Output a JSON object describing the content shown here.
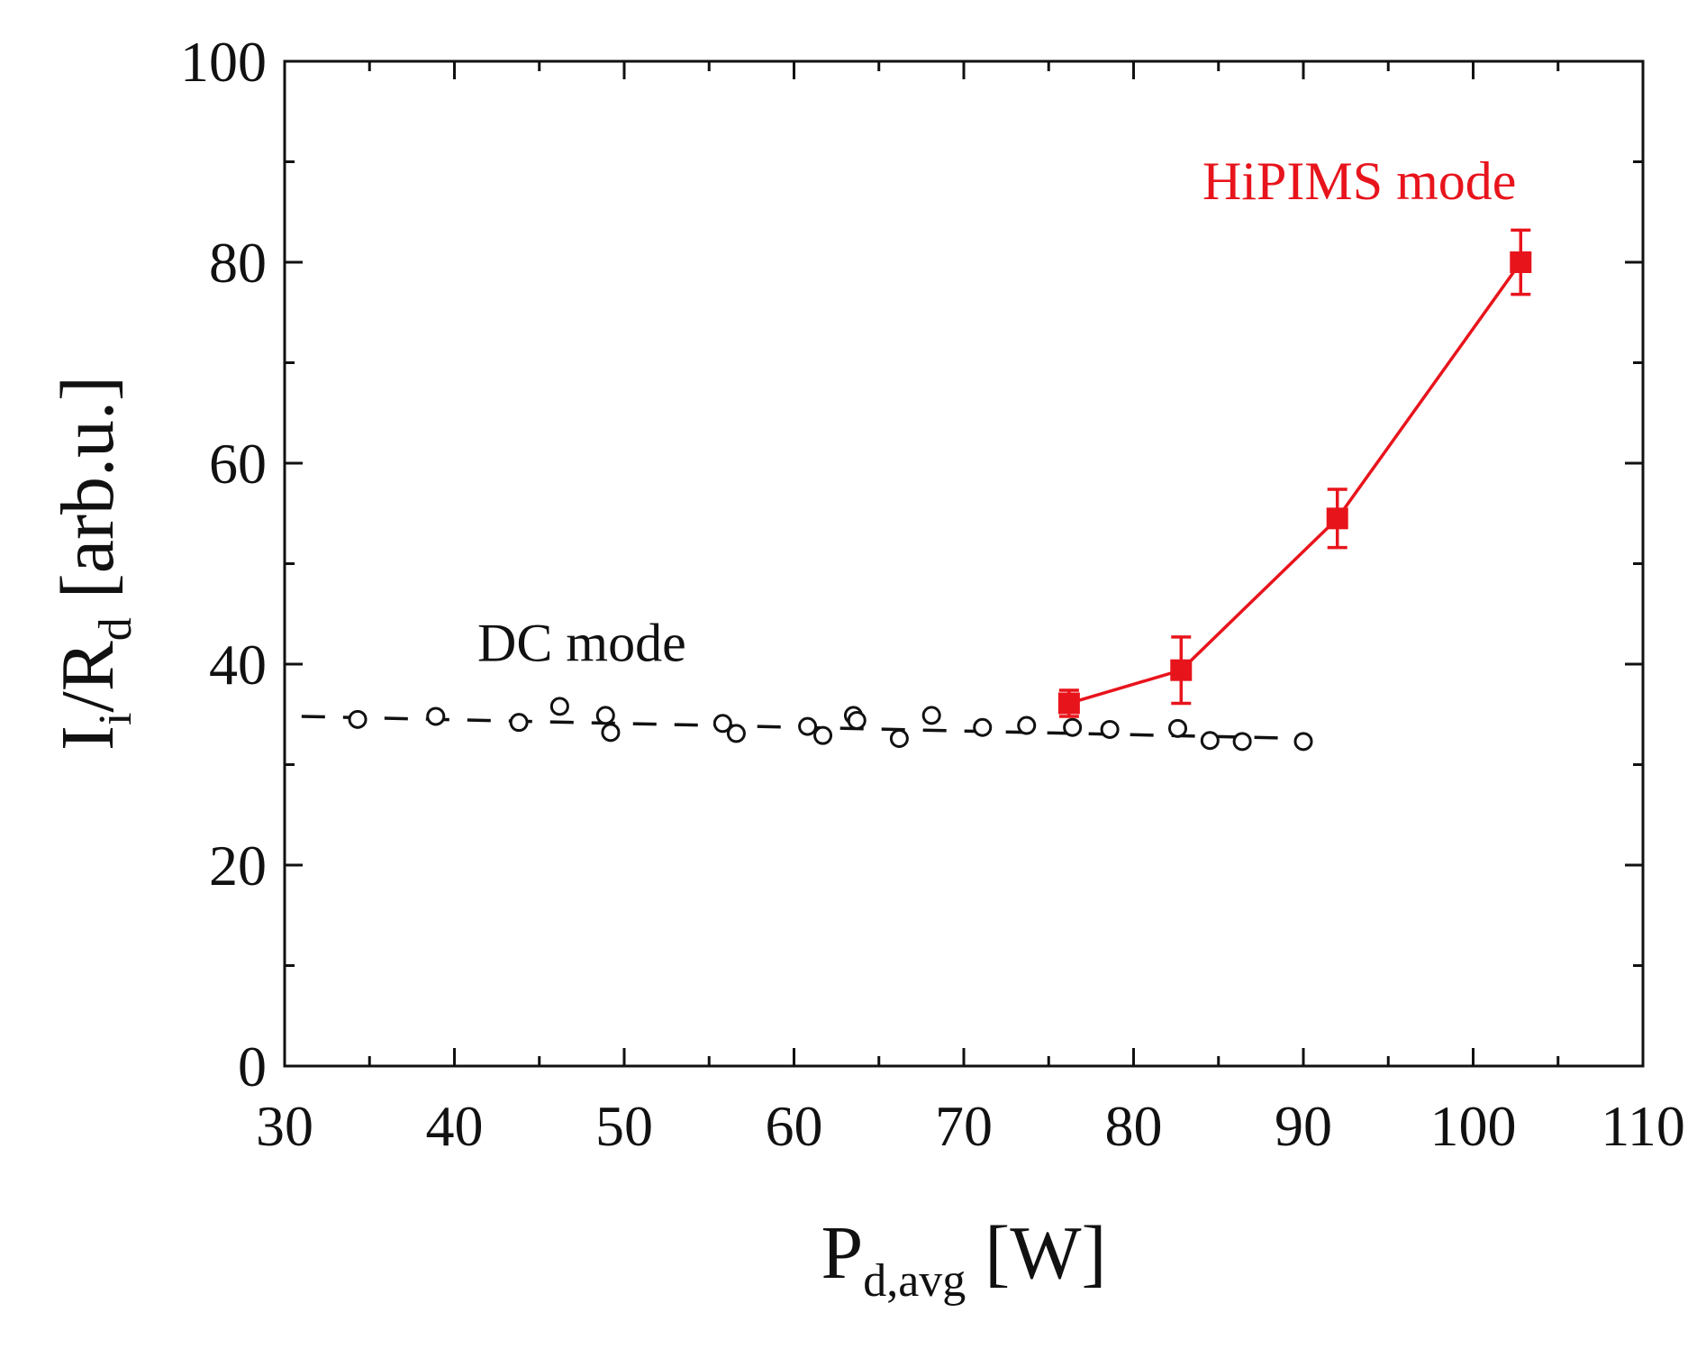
{
  "chart_data": {
    "type": "scatter",
    "title": "",
    "xlabel": {
      "main": "P",
      "sub": "d,avg",
      "unit": " [W]"
    },
    "ylabel": {
      "p1": "I",
      "sub1": "i",
      "p2": "/R",
      "sub2": "d",
      "unit": " [arb.u.]"
    },
    "xlim": [
      30,
      110
    ],
    "ylim": [
      0,
      100
    ],
    "x_ticks": [
      30,
      40,
      50,
      60,
      70,
      80,
      90,
      100,
      110
    ],
    "y_ticks": [
      0,
      20,
      40,
      60,
      80,
      100
    ],
    "x_minor_step": 5,
    "y_minor_step": 10,
    "grid": false,
    "annotations": [
      {
        "id": "dc",
        "text": "DC mode",
        "x": 47.5,
        "y": 40.3,
        "color": "#111111"
      },
      {
        "id": "hipims",
        "text": "HiPIMS mode",
        "x": 93.3,
        "y": 86.3,
        "color": "#e8141c"
      }
    ],
    "series": [
      {
        "name": "DC mode",
        "color": "#111111",
        "marker": "open-circle",
        "points": [
          {
            "x": 34.3,
            "y": 34.5
          },
          {
            "x": 38.9,
            "y": 34.8
          },
          {
            "x": 43.8,
            "y": 34.2
          },
          {
            "x": 46.2,
            "y": 35.8
          },
          {
            "x": 48.9,
            "y": 34.9
          },
          {
            "x": 49.2,
            "y": 33.2
          },
          {
            "x": 55.8,
            "y": 34.1
          },
          {
            "x": 56.6,
            "y": 33.1
          },
          {
            "x": 60.8,
            "y": 33.8
          },
          {
            "x": 61.7,
            "y": 32.9
          },
          {
            "x": 63.5,
            "y": 34.9
          },
          {
            "x": 63.7,
            "y": 34.4
          },
          {
            "x": 66.2,
            "y": 32.6
          },
          {
            "x": 68.1,
            "y": 34.9
          },
          {
            "x": 71.1,
            "y": 33.7
          },
          {
            "x": 73.7,
            "y": 33.9
          },
          {
            "x": 76.4,
            "y": 33.7
          },
          {
            "x": 78.6,
            "y": 33.5
          },
          {
            "x": 82.6,
            "y": 33.6
          },
          {
            "x": 84.5,
            "y": 32.4
          },
          {
            "x": 86.4,
            "y": 32.3
          },
          {
            "x": 90.0,
            "y": 32.3
          }
        ],
        "fit_line": {
          "style": "dashed",
          "x": [
            31.0,
            90.0
          ],
          "y": [
            34.8,
            32.6
          ]
        }
      },
      {
        "name": "HiPIMS mode",
        "color": "#e8141c",
        "marker": "filled-square",
        "line": "solid",
        "points": [
          {
            "x": 76.2,
            "y": 36.1,
            "err": 1.3
          },
          {
            "x": 82.8,
            "y": 39.4,
            "err": 3.3
          },
          {
            "x": 92.0,
            "y": 54.5,
            "err": 2.9
          },
          {
            "x": 102.8,
            "y": 80.0,
            "err": 3.2
          }
        ]
      }
    ]
  }
}
